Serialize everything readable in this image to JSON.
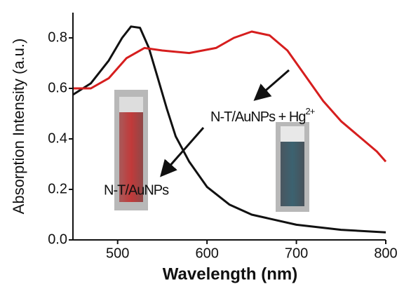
{
  "chart_data": {
    "type": "line",
    "xlabel": "Wavelength (nm)",
    "ylabel": "Absorption Intensity (a.u.)",
    "xlim": [
      450,
      800
    ],
    "xticks": [
      500,
      600,
      700,
      800
    ],
    "ylim": [
      0,
      0.9
    ],
    "yticks": [
      {
        "value": 0,
        "label": "0.0"
      },
      0.2,
      0.4,
      0.6,
      0.8
    ],
    "series": [
      {
        "color": "#111111",
        "x": [
          450,
          470,
          490,
          505,
          515,
          525,
          535,
          545,
          555,
          565,
          580,
          600,
          625,
          650,
          700,
          750,
          800
        ],
        "values": [
          0.575,
          0.62,
          0.71,
          0.8,
          0.845,
          0.84,
          0.76,
          0.64,
          0.52,
          0.41,
          0.31,
          0.21,
          0.14,
          0.1,
          0.06,
          0.04,
          0.03
        ]
      },
      {
        "color": "#d61e1e",
        "x": [
          450,
          470,
          490,
          510,
          530,
          550,
          580,
          610,
          630,
          650,
          670,
          690,
          710,
          730,
          750,
          770,
          790,
          800
        ],
        "values": [
          0.6,
          0.6,
          0.64,
          0.72,
          0.76,
          0.75,
          0.74,
          0.76,
          0.8,
          0.825,
          0.81,
          0.75,
          0.65,
          0.55,
          0.47,
          0.41,
          0.35,
          0.31
        ]
      }
    ],
    "annotations": [
      {
        "text": "N-T/AuNPs"
      },
      {
        "text": "N-T/AuNPs + Hg",
        "superscript": "2+"
      }
    ]
  }
}
